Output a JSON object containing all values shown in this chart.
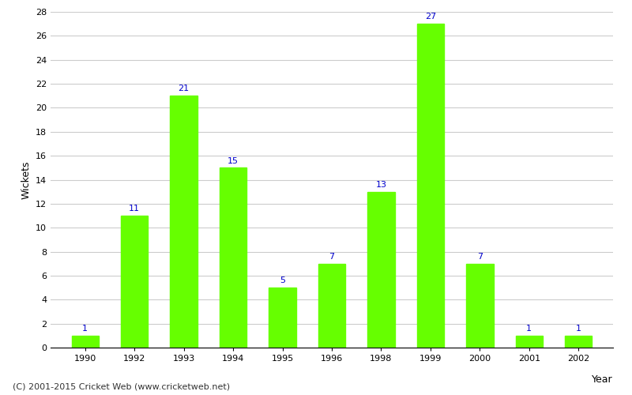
{
  "years": [
    "1990",
    "1992",
    "1993",
    "1994",
    "1995",
    "1996",
    "1998",
    "1999",
    "2000",
    "2001",
    "2002"
  ],
  "values": [
    1,
    11,
    21,
    15,
    5,
    7,
    13,
    27,
    7,
    1,
    1
  ],
  "bar_color": "#66ff00",
  "bar_edge_color": "#66ff00",
  "label_color": "#0000cc",
  "ylabel": "Wickets",
  "xlabel": "Year",
  "ylim": [
    0,
    28
  ],
  "yticks": [
    0,
    2,
    4,
    6,
    8,
    10,
    12,
    14,
    16,
    18,
    20,
    22,
    24,
    26,
    28
  ],
  "background_color": "#ffffff",
  "grid_color": "#cccccc",
  "footer": "(C) 2001-2015 Cricket Web (www.cricketweb.net)",
  "label_fontsize": 8,
  "axis_label_fontsize": 9,
  "tick_fontsize": 8,
  "footer_fontsize": 8
}
